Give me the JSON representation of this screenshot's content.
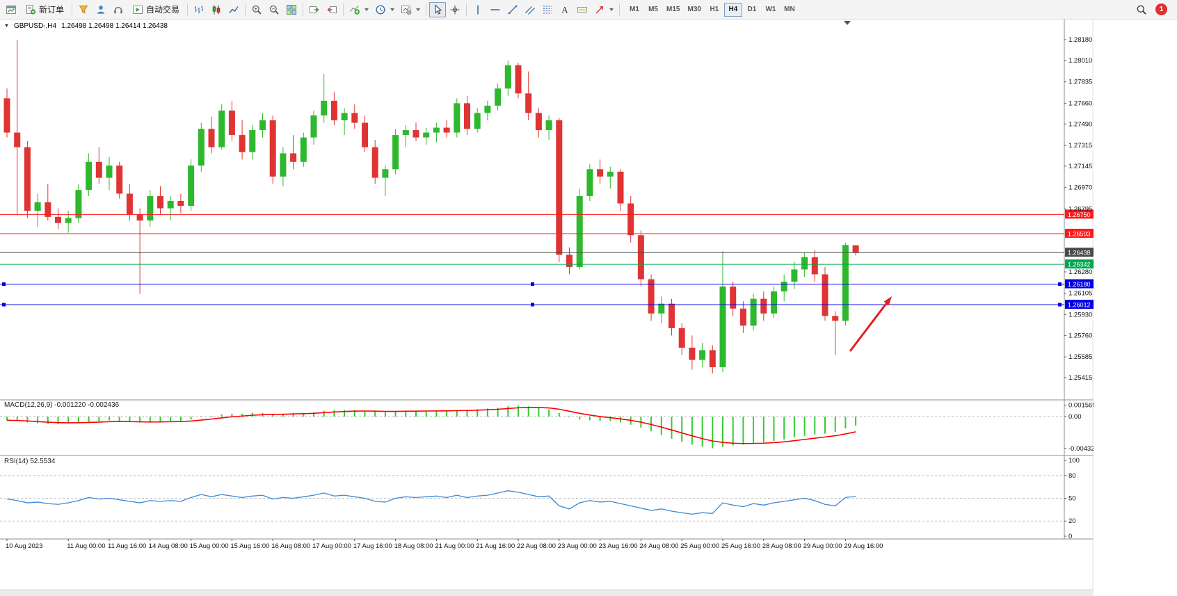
{
  "toolbar": {
    "new_order": "新订单",
    "auto_trading": "自动交易",
    "timeframes": [
      "M1",
      "M5",
      "M15",
      "M30",
      "H1",
      "H4",
      "D1",
      "W1",
      "MN"
    ],
    "active_timeframe": "H4",
    "notification_count": "1"
  },
  "chart_header": {
    "collapse_arrow": "▼",
    "symbol": "GBPUSD-,H4",
    "ohlc_text": "1.26498 1.26498 1.26414 1.26438"
  },
  "price_axis": {
    "labels": [
      "1.28180",
      "1.28010",
      "1.27835",
      "1.27660",
      "1.27490",
      "1.27315",
      "1.27145",
      "1.26970",
      "1.26795",
      "1.26280",
      "1.26105",
      "1.25930",
      "1.25760",
      "1.25585",
      "1.25415"
    ]
  },
  "levels": [
    {
      "price": 1.2675,
      "label": "1.26750",
      "color": "#ff1a1a",
      "handles": false
    },
    {
      "price": 1.26593,
      "label": "1.26593",
      "color": "#ff1a1a",
      "handles": false
    },
    {
      "price": 1.26438,
      "label": "1.26438",
      "color": "#4a4a4a",
      "handles": false
    },
    {
      "price": 1.26342,
      "label": "1.26342",
      "color": "#00a651",
      "handles": false
    },
    {
      "price": 1.2618,
      "label": "1.26180",
      "color": "#0000e8",
      "handles": true
    },
    {
      "price": 1.26012,
      "label": "1.26012",
      "color": "#0000e8",
      "handles": true
    }
  ],
  "time_axis": {
    "labels": [
      [
        0,
        "10 Aug 2023"
      ],
      [
        6,
        "11 Aug 00:00"
      ],
      [
        10,
        "11 Aug 16:00"
      ],
      [
        14,
        "14 Aug 08:00"
      ],
      [
        18,
        "15 Aug 00:00"
      ],
      [
        22,
        "15 Aug 16:00"
      ],
      [
        26,
        "16 Aug 08:00"
      ],
      [
        30,
        "17 Aug 00:00"
      ],
      [
        34,
        "17 Aug 16:00"
      ],
      [
        38,
        "18 Aug 08:00"
      ],
      [
        42,
        "21 Aug 00:00"
      ],
      [
        46,
        "21 Aug 16:00"
      ],
      [
        50,
        "22 Aug 08:00"
      ],
      [
        54,
        "23 Aug 00:00"
      ],
      [
        58,
        "23 Aug 16:00"
      ],
      [
        62,
        "24 Aug 08:00"
      ],
      [
        66,
        "25 Aug 00:00"
      ],
      [
        70,
        "25 Aug 16:00"
      ],
      [
        74,
        "28 Aug 08:00"
      ],
      [
        78,
        "29 Aug 00:00"
      ],
      [
        82,
        "29 Aug 16:00"
      ]
    ]
  },
  "chart_data": [
    {
      "type": "candlestick",
      "symbol": "GBPUSD-",
      "period": "H4",
      "up_color": "#2eb82e",
      "down_color": "#e03434",
      "y_range": [
        1.25415,
        1.2818
      ],
      "ohlc": [
        [
          1.277,
          1.2778,
          1.2738,
          1.2742
        ],
        [
          1.2742,
          1.2818,
          1.2675,
          1.273
        ],
        [
          1.273,
          1.2735,
          1.2672,
          1.2678
        ],
        [
          1.2678,
          1.2692,
          1.2665,
          1.2685
        ],
        [
          1.2685,
          1.27,
          1.267,
          1.2673
        ],
        [
          1.2673,
          1.268,
          1.2663,
          1.2668
        ],
        [
          1.2668,
          1.2678,
          1.266,
          1.2672
        ],
        [
          1.2672,
          1.27,
          1.2668,
          1.2695
        ],
        [
          1.2695,
          1.2725,
          1.269,
          1.2718
        ],
        [
          1.2718,
          1.273,
          1.27,
          1.2705
        ],
        [
          1.2705,
          1.2722,
          1.2695,
          1.2715
        ],
        [
          1.2715,
          1.2718,
          1.2688,
          1.2692
        ],
        [
          1.2692,
          1.27,
          1.267,
          1.2675
        ],
        [
          1.2675,
          1.268,
          1.261,
          1.267
        ],
        [
          1.267,
          1.2695,
          1.2665,
          1.269
        ],
        [
          1.269,
          1.2698,
          1.2675,
          1.268
        ],
        [
          1.268,
          1.269,
          1.267,
          1.2686
        ],
        [
          1.2686,
          1.2692,
          1.2676,
          1.2682
        ],
        [
          1.2682,
          1.272,
          1.2678,
          1.2715
        ],
        [
          1.2715,
          1.275,
          1.271,
          1.2745
        ],
        [
          1.2745,
          1.2755,
          1.2725,
          1.273
        ],
        [
          1.273,
          1.2765,
          1.2728,
          1.276
        ],
        [
          1.276,
          1.2768,
          1.2735,
          1.274
        ],
        [
          1.274,
          1.2752,
          1.272,
          1.2726
        ],
        [
          1.2726,
          1.2748,
          1.272,
          1.2744
        ],
        [
          1.2744,
          1.2758,
          1.2738,
          1.2752
        ],
        [
          1.2752,
          1.2756,
          1.27,
          1.2706
        ],
        [
          1.2706,
          1.273,
          1.2698,
          1.2725
        ],
        [
          1.2725,
          1.274,
          1.2712,
          1.2718
        ],
        [
          1.2718,
          1.2742,
          1.2714,
          1.2738
        ],
        [
          1.2738,
          1.276,
          1.2732,
          1.2756
        ],
        [
          1.2756,
          1.279,
          1.275,
          1.2768
        ],
        [
          1.2768,
          1.2775,
          1.2748,
          1.2752
        ],
        [
          1.2752,
          1.2762,
          1.274,
          1.2758
        ],
        [
          1.2758,
          1.2765,
          1.2745,
          1.275
        ],
        [
          1.275,
          1.2756,
          1.2726,
          1.273
        ],
        [
          1.273,
          1.2736,
          1.27,
          1.2705
        ],
        [
          1.2705,
          1.2715,
          1.269,
          1.2712
        ],
        [
          1.2712,
          1.2745,
          1.2708,
          1.274
        ],
        [
          1.274,
          1.2748,
          1.273,
          1.2744
        ],
        [
          1.2744,
          1.275,
          1.2735,
          1.2738
        ],
        [
          1.2738,
          1.2746,
          1.2732,
          1.2742
        ],
        [
          1.2742,
          1.275,
          1.2734,
          1.2746
        ],
        [
          1.2746,
          1.2752,
          1.2738,
          1.2742
        ],
        [
          1.2742,
          1.277,
          1.2738,
          1.2766
        ],
        [
          1.2766,
          1.2772,
          1.274,
          1.2745
        ],
        [
          1.2745,
          1.2762,
          1.2742,
          1.2758
        ],
        [
          1.2758,
          1.2768,
          1.2752,
          1.2764
        ],
        [
          1.2764,
          1.2782,
          1.276,
          1.2778
        ],
        [
          1.2778,
          1.2801,
          1.2772,
          1.2797
        ],
        [
          1.2797,
          1.2799,
          1.277,
          1.2774
        ],
        [
          1.2774,
          1.2792,
          1.2752,
          1.2758
        ],
        [
          1.2758,
          1.2762,
          1.2738,
          1.2744
        ],
        [
          1.2744,
          1.2756,
          1.2736,
          1.2752
        ],
        [
          1.2752,
          1.2754,
          1.2636,
          1.2642
        ],
        [
          1.2642,
          1.2648,
          1.2626,
          1.2632
        ],
        [
          1.2632,
          1.2696,
          1.263,
          1.269
        ],
        [
          1.269,
          1.2716,
          1.2686,
          1.2712
        ],
        [
          1.2712,
          1.272,
          1.27,
          1.2706
        ],
        [
          1.2706,
          1.2714,
          1.2696,
          1.271
        ],
        [
          1.271,
          1.2712,
          1.2678,
          1.2684
        ],
        [
          1.2684,
          1.269,
          1.2652,
          1.2658
        ],
        [
          1.2658,
          1.2662,
          1.2616,
          1.2622
        ],
        [
          1.2622,
          1.2626,
          1.2588,
          1.2594
        ],
        [
          1.2594,
          1.2608,
          1.2586,
          1.2602
        ],
        [
          1.2602,
          1.2606,
          1.2576,
          1.2582
        ],
        [
          1.2582,
          1.2586,
          1.256,
          1.2566
        ],
        [
          1.2566,
          1.2576,
          1.2548,
          1.2556
        ],
        [
          1.2556,
          1.257,
          1.255,
          1.2564
        ],
        [
          1.2564,
          1.2568,
          1.2545,
          1.255
        ],
        [
          1.255,
          1.2645,
          1.2546,
          1.2616
        ],
        [
          1.2616,
          1.262,
          1.2592,
          1.2598
        ],
        [
          1.2598,
          1.2604,
          1.2578,
          1.2584
        ],
        [
          1.2584,
          1.261,
          1.258,
          1.2606
        ],
        [
          1.2606,
          1.2612,
          1.2588,
          1.2594
        ],
        [
          1.2594,
          1.2616,
          1.259,
          1.2612
        ],
        [
          1.2612,
          1.2626,
          1.2604,
          1.262
        ],
        [
          1.262,
          1.2636,
          1.2614,
          1.263
        ],
        [
          1.263,
          1.2644,
          1.2624,
          1.264
        ],
        [
          1.264,
          1.2646,
          1.262,
          1.2626
        ],
        [
          1.2626,
          1.2632,
          1.2588,
          1.2592
        ],
        [
          1.2592,
          1.2596,
          1.256,
          1.2588
        ],
        [
          1.2588,
          1.2652,
          1.2584,
          1.265
        ],
        [
          1.26498,
          1.26498,
          1.26414,
          1.26438
        ]
      ]
    },
    {
      "type": "bar",
      "name": "MACD",
      "title": "MACD(12,26,9) -0.001220 -0.002436",
      "histogram_color": "#32cd32",
      "signal_color": "#ff0000",
      "signal_alpha": 0.25,
      "axis_labels": [
        "0.001569",
        "0.00",
        "-0.004322"
      ],
      "y_range": [
        -0.005,
        0.0018
      ],
      "values": [
        -0.0005,
        -0.0006,
        -0.0008,
        -0.0009,
        -0.001,
        -0.001,
        -0.0009,
        -0.0008,
        -0.0007,
        -0.0006,
        -0.0005,
        -0.0006,
        -0.0007,
        -0.0008,
        -0.0008,
        -0.0007,
        -0.0006,
        -0.0006,
        -0.0004,
        -0.0001,
        0.0001,
        0.0003,
        0.0004,
        0.0004,
        0.0005,
        0.0005,
        0.0004,
        0.0004,
        0.0005,
        0.0005,
        0.0006,
        0.0008,
        0.0009,
        0.0009,
        0.0009,
        0.0008,
        0.0007,
        0.0006,
        0.0007,
        0.0008,
        0.0008,
        0.0008,
        0.0008,
        0.0008,
        0.0009,
        0.0009,
        0.001,
        0.0011,
        0.0012,
        0.0014,
        0.0015,
        0.0014,
        0.0012,
        0.001,
        0.0005,
        -0.0001,
        -0.0004,
        -0.0005,
        -0.0006,
        -0.0006,
        -0.0008,
        -0.0011,
        -0.0015,
        -0.002,
        -0.0025,
        -0.003,
        -0.0034,
        -0.0038,
        -0.0041,
        -0.0043,
        -0.0041,
        -0.0039,
        -0.0038,
        -0.0036,
        -0.0035,
        -0.0033,
        -0.0031,
        -0.0028,
        -0.0026,
        -0.0024,
        -0.0023,
        -0.0021,
        -0.0016,
        -0.00122
      ]
    },
    {
      "type": "line",
      "name": "RSI",
      "title": "RSI(14) 52.5534",
      "line_color": "#3c87d7",
      "levels": [
        80,
        50,
        20
      ],
      "axis_labels": [
        "100",
        "80",
        "50",
        "20",
        "0"
      ],
      "y_range": [
        0,
        100
      ],
      "values": [
        49,
        47,
        44,
        45,
        43,
        42,
        44,
        47,
        51,
        49,
        50,
        48,
        46,
        44,
        47,
        46,
        47,
        46,
        51,
        55,
        52,
        55,
        53,
        51,
        53,
        54,
        49,
        51,
        50,
        52,
        54,
        57,
        53,
        54,
        52,
        50,
        46,
        45,
        50,
        52,
        51,
        52,
        53,
        51,
        54,
        51,
        53,
        54,
        57,
        60,
        58,
        55,
        52,
        53,
        40,
        36,
        44,
        47,
        45,
        46,
        43,
        40,
        37,
        34,
        36,
        33,
        31,
        29,
        31,
        30,
        44,
        41,
        39,
        43,
        41,
        44,
        46,
        48,
        50,
        47,
        42,
        40,
        51,
        52.5534
      ]
    }
  ],
  "annotations": {
    "arrow": {
      "from": [
        1222,
        477
      ],
      "to": [
        1282,
        398
      ],
      "color": "#e02020"
    }
  }
}
